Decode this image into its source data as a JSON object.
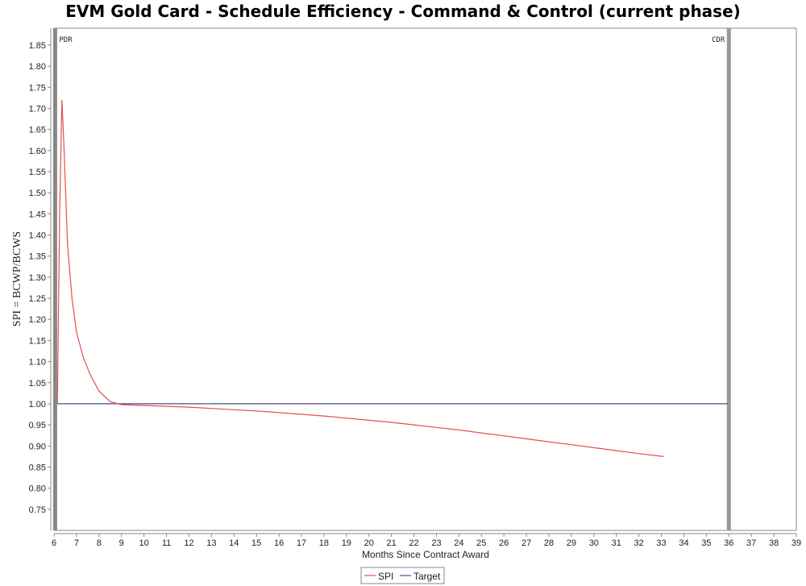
{
  "chart_data": {
    "type": "line",
    "title": "EVM Gold Card - Schedule Efficiency - Command & Control (current phase)",
    "xlabel": "Months Since Contract Award",
    "ylabel": "SPI = BCWP/BCWS",
    "xlim": [
      6,
      39
    ],
    "ylim": [
      0.7,
      1.89
    ],
    "x_ticks": [
      6,
      7,
      8,
      9,
      10,
      11,
      12,
      13,
      14,
      15,
      16,
      17,
      18,
      19,
      20,
      21,
      22,
      23,
      24,
      25,
      26,
      27,
      28,
      29,
      30,
      31,
      32,
      33,
      34,
      35,
      36,
      37,
      38,
      39
    ],
    "y_ticks": [
      0.75,
      0.8,
      0.85,
      0.9,
      0.95,
      1.0,
      1.05,
      1.1,
      1.15,
      1.2,
      1.25,
      1.3,
      1.35,
      1.4,
      1.45,
      1.5,
      1.55,
      1.6,
      1.65,
      1.7,
      1.75,
      1.8,
      1.85
    ],
    "grid": false,
    "legend": "bottom-center",
    "series": [
      {
        "name": "SPI",
        "color": "#e05050",
        "x": [
          6.15,
          6.25,
          6.35,
          6.45,
          6.6,
          6.8,
          7.0,
          7.3,
          7.6,
          8.0,
          8.5,
          9.0,
          10,
          11,
          12,
          13,
          14,
          15,
          16,
          17,
          18,
          19,
          20,
          21,
          22,
          23,
          24,
          25,
          26,
          27,
          28,
          29,
          30,
          31,
          32,
          33.1
        ],
        "values": [
          1.0,
          1.45,
          1.72,
          1.6,
          1.38,
          1.25,
          1.17,
          1.11,
          1.07,
          1.03,
          1.005,
          0.998,
          0.996,
          0.994,
          0.992,
          0.989,
          0.986,
          0.983,
          0.979,
          0.975,
          0.971,
          0.966,
          0.961,
          0.956,
          0.95,
          0.944,
          0.938,
          0.931,
          0.924,
          0.917,
          0.91,
          0.903,
          0.896,
          0.889,
          0.882,
          0.875
        ]
      },
      {
        "name": "Target",
        "color": "#4a4a9a",
        "x": [
          6.15,
          35.95
        ],
        "values": [
          1.0,
          1.0
        ]
      }
    ],
    "markers": [
      {
        "label": "PDR",
        "x": 6.05,
        "color": "#888888"
      },
      {
        "label": "CDR",
        "x": 36.0,
        "color": "#999999"
      }
    ]
  }
}
